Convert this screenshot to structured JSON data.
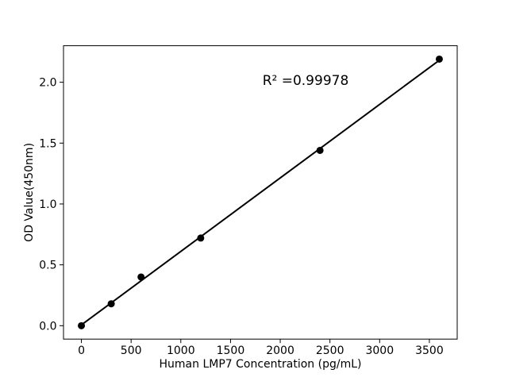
{
  "figure": {
    "background": "#ffffff"
  },
  "chart_data": {
    "type": "scatter",
    "title": "",
    "xlabel": "Human LMP7 Concentration (pg/mL)",
    "ylabel": "OD Value(450nm)",
    "x": [
      0,
      300,
      600,
      1200,
      2400,
      3600
    ],
    "y": [
      0.0,
      0.18,
      0.4,
      0.72,
      1.44,
      2.19
    ],
    "fit_line": true,
    "annotation": "R² =0.99978",
    "r_squared": 0.99978,
    "annotation_xy": [
      2255,
      2.01
    ],
    "xlim": [
      -180,
      3780
    ],
    "ylim": [
      -0.11,
      2.3
    ],
    "xticks": [
      0,
      500,
      1000,
      1500,
      2000,
      2500,
      3000,
      3500
    ],
    "yticks": [
      "0.0",
      "0.5",
      "1.0",
      "1.5",
      "2.0"
    ],
    "grid": false,
    "legend": null,
    "marker_color": "#000000",
    "line_color": "#000000",
    "axis_color": "#000000"
  }
}
